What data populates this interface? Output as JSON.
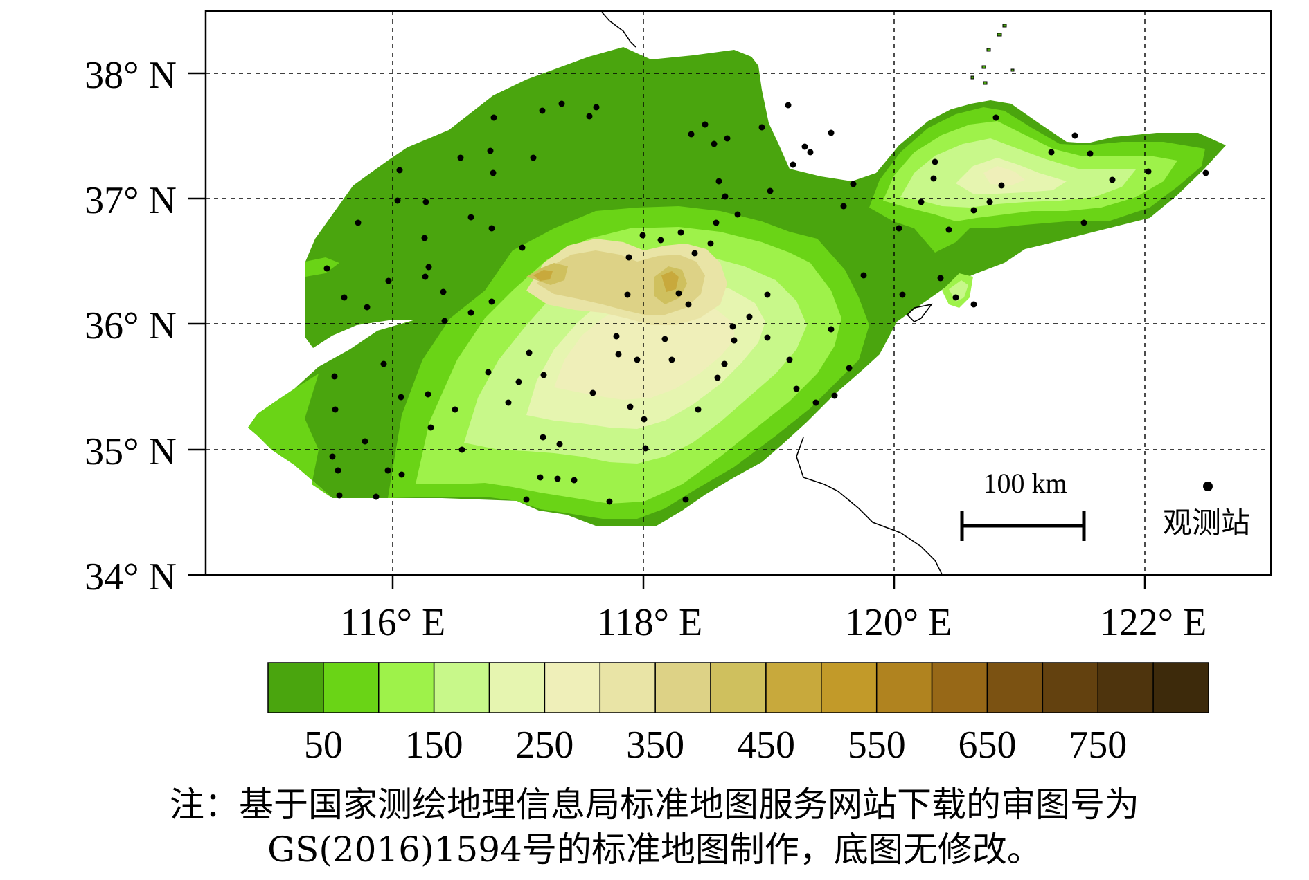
{
  "map": {
    "lat_labels": [
      "38° N",
      "37° N",
      "36° N",
      "35° N",
      "34° N"
    ],
    "lon_labels": [
      "116° E",
      "118° E",
      "120° E",
      "122° E"
    ],
    "scale_bar_label": "100 km",
    "legend_station_label": "观测站",
    "colorbar": {
      "colors": [
        "#4aa50e",
        "#6ad416",
        "#9ef24a",
        "#c8f88a",
        "#e6f5b0",
        "#efefb9",
        "#e9e4a6",
        "#ddd286",
        "#cfc05e",
        "#c8a93c",
        "#c29a29",
        "#b0831f",
        "#976817",
        "#7b5212",
        "#63410f",
        "#4e340d",
        "#3d2a0b"
      ],
      "tick_labels": [
        "50",
        "150",
        "250",
        "350",
        "450",
        "550",
        "650",
        "750"
      ]
    }
  },
  "note": {
    "line1": "注：基于国家测绘地理信息局标准地图服务网站下载的审图号为",
    "line2": "GS(2016)1594号的标准地图制作，底图无修改。"
  }
}
